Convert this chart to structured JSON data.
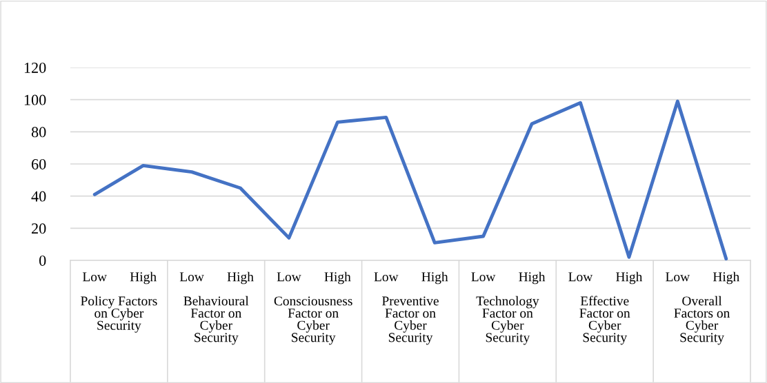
{
  "chart_data": {
    "type": "line",
    "categories": [
      "Low",
      "High",
      "Low",
      "High",
      "Low",
      "High",
      "Low",
      "High",
      "Low",
      "High",
      "Low",
      "High",
      "Low",
      "High"
    ],
    "series": [
      {
        "color": "#4472c4",
        "values": [
          41,
          59,
          55,
          45,
          14,
          86,
          89,
          11,
          15,
          85,
          98,
          2,
          99,
          1
        ]
      }
    ],
    "ylim": [
      0,
      120
    ],
    "yticks": [
      0,
      20,
      40,
      60,
      80,
      100,
      120
    ],
    "grid": "y",
    "legend": false,
    "marker": "none",
    "line_style": "solid",
    "annotations": [
      "Policy Factors\non Cyber\nSecurity",
      "Behavioural\nFactor on\nCyber\nSecurity",
      "Consciousness\nFactor on\nCyber\nSecurity",
      "Preventive\nFactor on\nCyber\nSecurity",
      "Technology\nFactor on\nCyber\nSecurity",
      "Effective\nFactor on\nCyber\nSecurity",
      "Overall\nFactors on\nCyber\nSecurity"
    ]
  }
}
